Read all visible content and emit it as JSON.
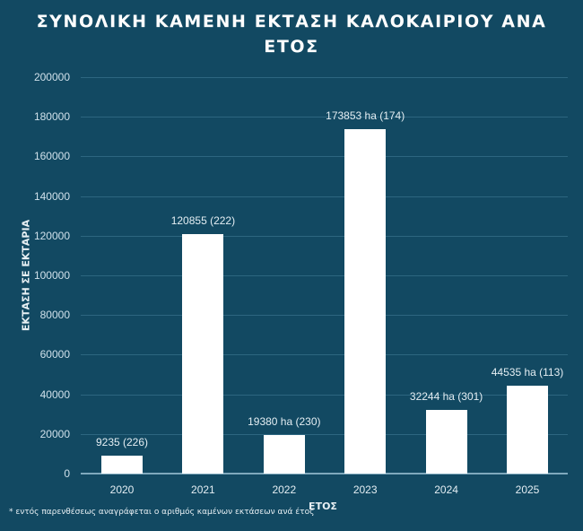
{
  "title": "ΣΥΝΟΛΙΚΗ ΚΑΜΕΝΗ ΕΚΤΑΣΗ ΚΑΛΟΚΑΙΡΙΟΥ ΑΝΑ ΕΤΟΣ",
  "title_lines": [
    "ΣΥΝΟΛΙΚΗ ΚΑΜΕΝΗ ΕΚΤΑΣΗ ΚΑΛΟΚΑΙΡΙΟΥ ΑΝΑ",
    "ΕΤΟΣ"
  ],
  "colors": {
    "background": "#124962",
    "bar": "#ffffff",
    "gridline": "#2d6680",
    "text": "#ffffff"
  },
  "footnote": "* εντός παρενθέσεως αναγράφεται ο αριθμός καμένων εκτάσεων ανά έτος",
  "chart_data": {
    "type": "bar",
    "title": "ΣΥΝΟΛΙΚΗ ΚΑΜΕΝΗ ΕΚΤΑΣΗ ΚΑΛΟΚΑΙΡΙΟΥ ΑΝΑ ΕΤΟΣ",
    "xlabel": "ΕΤΟΣ",
    "ylabel": "ΕΚΤΑΣΗ ΣΕ ΕΚΤΑΡΙΑ",
    "ylim": [
      0,
      200000
    ],
    "yticks": [
      "0",
      "20000",
      "40000",
      "60000",
      "80000",
      "100000",
      "120000",
      "140000",
      "160000",
      "180000",
      "200000"
    ],
    "grid": true,
    "legend": null,
    "categories": [
      "2020",
      "2021",
      "2022",
      "2023",
      "2024",
      "2025"
    ],
    "values": [
      9235,
      120855,
      19380,
      173853,
      32244,
      44535
    ],
    "fire_counts": [
      226,
      222,
      230,
      174,
      301,
      113
    ],
    "data_labels": [
      "9235 (226)",
      "120855 (222)",
      "19380 ha (230)",
      "173853 ha (174)",
      "32244 ha (301)",
      "44535 ha (113)"
    ],
    "annotation": "* εντός παρενθέσεως αναγράφεται ο αριθμός καμένων εκτάσεων ανά έτος"
  }
}
